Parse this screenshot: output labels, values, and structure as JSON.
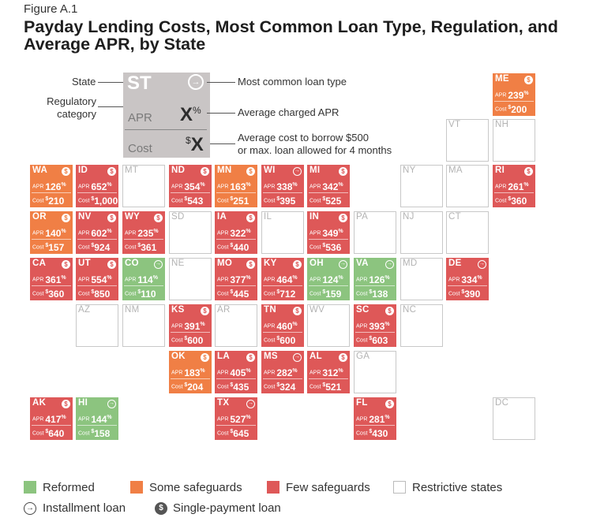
{
  "figure_label": "Figure A.1",
  "title_line1": "Payday Lending Costs, Most Common Loan Type, Regulation, and",
  "title_line2": "Average APR, by State",
  "key": {
    "st": "ST",
    "apr_label": "APR",
    "apr_value": "X",
    "apr_unit": "%",
    "cost_label": "Cost",
    "cost_prefix": "$",
    "cost_value": "X",
    "label_state": "State",
    "label_regulatory_1": "Regulatory",
    "label_regulatory_2": "category",
    "label_loan_type": "Most common loan type",
    "label_apr": "Average charged APR",
    "label_cost_1": "Average cost to borrow $500",
    "label_cost_2": "or max. loan allowed for 4 months"
  },
  "tile_labels": {
    "apr": "APR",
    "cost": "Cost",
    "pct": "%",
    "dollar": "$"
  },
  "colors": {
    "reformed": "#8cc47f",
    "some_safeguards": "#f07f45",
    "few_safeguards": "#de5858",
    "restrictive": "#ffffff"
  },
  "icons": {
    "installment": "installment-loan-icon",
    "single": "single-payment-loan-icon"
  },
  "states": [
    {
      "abbr": "ME",
      "cat": "some",
      "loan": "single",
      "apr": "239",
      "cost": "200"
    },
    {
      "abbr": "VT",
      "cat": "restrictive"
    },
    {
      "abbr": "NH",
      "cat": "restrictive"
    },
    {
      "abbr": "WA",
      "cat": "some",
      "loan": "single",
      "apr": "126",
      "cost": "210"
    },
    {
      "abbr": "ID",
      "cat": "few",
      "loan": "single",
      "apr": "652",
      "cost": "1,000"
    },
    {
      "abbr": "MT",
      "cat": "restrictive"
    },
    {
      "abbr": "ND",
      "cat": "few",
      "loan": "single",
      "apr": "354",
      "cost": "543"
    },
    {
      "abbr": "MN",
      "cat": "some",
      "loan": "single",
      "apr": "163",
      "cost": "251"
    },
    {
      "abbr": "WI",
      "cat": "few",
      "loan": "inst",
      "apr": "338",
      "cost": "395"
    },
    {
      "abbr": "MI",
      "cat": "few",
      "loan": "single",
      "apr": "342",
      "cost": "525"
    },
    {
      "abbr": "NY",
      "cat": "restrictive"
    },
    {
      "abbr": "MA",
      "cat": "restrictive"
    },
    {
      "abbr": "RI",
      "cat": "few",
      "loan": "single",
      "apr": "261",
      "cost": "360"
    },
    {
      "abbr": "OR",
      "cat": "some",
      "loan": "single",
      "apr": "140",
      "cost": "157"
    },
    {
      "abbr": "NV",
      "cat": "few",
      "loan": "single",
      "apr": "602",
      "cost": "924"
    },
    {
      "abbr": "WY",
      "cat": "few",
      "loan": "single",
      "apr": "235",
      "cost": "361"
    },
    {
      "abbr": "SD",
      "cat": "restrictive"
    },
    {
      "abbr": "IA",
      "cat": "few",
      "loan": "single",
      "apr": "322",
      "cost": "440"
    },
    {
      "abbr": "IL",
      "cat": "restrictive"
    },
    {
      "abbr": "IN",
      "cat": "few",
      "loan": "single",
      "apr": "349",
      "cost": "536"
    },
    {
      "abbr": "PA",
      "cat": "restrictive"
    },
    {
      "abbr": "NJ",
      "cat": "restrictive"
    },
    {
      "abbr": "CT",
      "cat": "restrictive"
    },
    {
      "abbr": "CA",
      "cat": "few",
      "loan": "single",
      "apr": "361",
      "cost": "360"
    },
    {
      "abbr": "UT",
      "cat": "few",
      "loan": "single",
      "apr": "554",
      "cost": "850"
    },
    {
      "abbr": "CO",
      "cat": "reformed",
      "loan": "inst",
      "apr": "114",
      "cost": "110"
    },
    {
      "abbr": "NE",
      "cat": "restrictive"
    },
    {
      "abbr": "MO",
      "cat": "few",
      "loan": "single",
      "apr": "377",
      "cost": "445"
    },
    {
      "abbr": "KY",
      "cat": "few",
      "loan": "single",
      "apr": "464",
      "cost": "712"
    },
    {
      "abbr": "OH",
      "cat": "reformed",
      "loan": "inst",
      "apr": "124",
      "cost": "159"
    },
    {
      "abbr": "VA",
      "cat": "reformed",
      "loan": "inst",
      "apr": "126",
      "cost": "138"
    },
    {
      "abbr": "MD",
      "cat": "restrictive"
    },
    {
      "abbr": "DE",
      "cat": "few",
      "loan": "inst",
      "apr": "334",
      "cost": "390"
    },
    {
      "abbr": "AZ",
      "cat": "restrictive"
    },
    {
      "abbr": "NM",
      "cat": "restrictive"
    },
    {
      "abbr": "KS",
      "cat": "few",
      "loan": "single",
      "apr": "391",
      "cost": "600"
    },
    {
      "abbr": "AR",
      "cat": "restrictive"
    },
    {
      "abbr": "TN",
      "cat": "few",
      "loan": "single",
      "apr": "460",
      "cost": "600"
    },
    {
      "abbr": "WV",
      "cat": "restrictive"
    },
    {
      "abbr": "SC",
      "cat": "few",
      "loan": "single",
      "apr": "393",
      "cost": "603"
    },
    {
      "abbr": "NC",
      "cat": "restrictive"
    },
    {
      "abbr": "OK",
      "cat": "some",
      "loan": "single",
      "apr": "183",
      "cost": "204"
    },
    {
      "abbr": "LA",
      "cat": "few",
      "loan": "single",
      "apr": "405",
      "cost": "435"
    },
    {
      "abbr": "MS",
      "cat": "few",
      "loan": "inst",
      "apr": "282",
      "cost": "324"
    },
    {
      "abbr": "AL",
      "cat": "few",
      "loan": "single",
      "apr": "312",
      "cost": "521"
    },
    {
      "abbr": "GA",
      "cat": "restrictive"
    },
    {
      "abbr": "AK",
      "cat": "few",
      "loan": "single",
      "apr": "417",
      "cost": "640"
    },
    {
      "abbr": "HI",
      "cat": "reformed",
      "loan": "inst",
      "apr": "144",
      "cost": "158"
    },
    {
      "abbr": "TX",
      "cat": "few",
      "loan": "inst",
      "apr": "527",
      "cost": "645"
    },
    {
      "abbr": "FL",
      "cat": "few",
      "loan": "single",
      "apr": "281",
      "cost": "430"
    },
    {
      "abbr": "DC",
      "cat": "restrictive"
    }
  ],
  "legend": {
    "reformed": "Reformed",
    "some": "Some safeguards",
    "few": "Few safeguards",
    "restrictive": "Restrictive states",
    "installment": "Installment loan",
    "single": "Single-payment loan"
  }
}
